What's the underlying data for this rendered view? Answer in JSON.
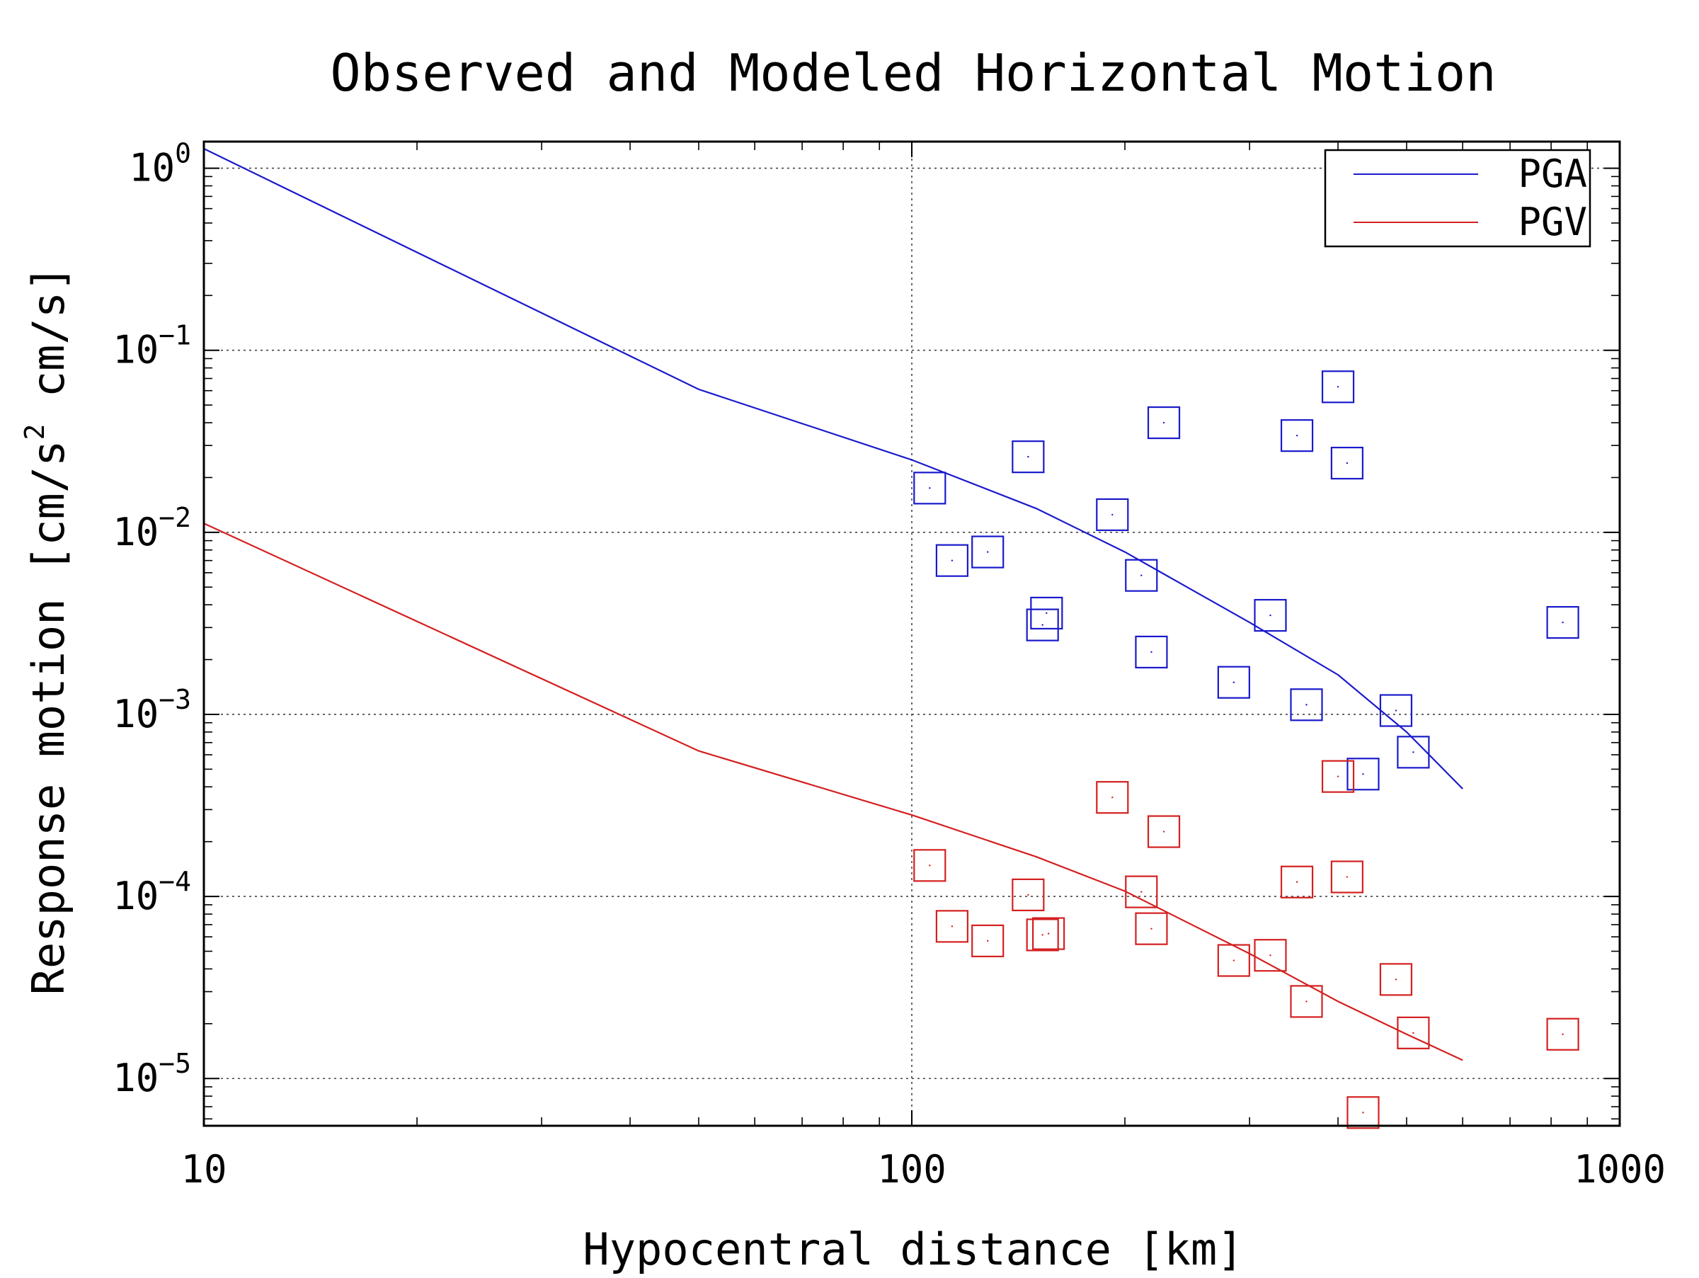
{
  "chart_data": {
    "type": "line",
    "title": "Observed and Modeled Horizontal Motion",
    "xlabel": "Hypocentral distance [km]",
    "ylabel": "Response motion  [cm/s",
    "ylabel_exponent": "2",
    "ylabel_suffix": "  cm/s]",
    "xscale": "log",
    "yscale": "log",
    "xlim": [
      10,
      1000
    ],
    "ylim": [
      5.5e-06,
      1.4
    ],
    "grid": true,
    "legend_position": "top-right",
    "x_ticks": [
      {
        "value": 10,
        "label": "10"
      },
      {
        "value": 100,
        "label": "100"
      },
      {
        "value": 1000,
        "label": "1000"
      }
    ],
    "y_ticks": [
      {
        "value": 1,
        "base": "10",
        "exp": "0"
      },
      {
        "value": 0.1,
        "base": "10",
        "exp": "−1"
      },
      {
        "value": 0.01,
        "base": "10",
        "exp": "−2"
      },
      {
        "value": 0.001,
        "base": "10",
        "exp": "−3"
      },
      {
        "value": 0.0001,
        "base": "10",
        "exp": "−4"
      },
      {
        "value": 1e-05,
        "base": "10",
        "exp": "−5"
      }
    ],
    "series": [
      {
        "name": "PGA",
        "color": "#1a1acc",
        "line": [
          [
            10,
            1.28
          ],
          [
            50,
            0.061
          ],
          [
            100,
            0.025
          ],
          [
            150,
            0.0135
          ],
          [
            200,
            0.0078
          ],
          [
            300,
            0.0032
          ],
          [
            400,
            0.00165
          ],
          [
            500,
            0.0008
          ],
          [
            600,
            0.00039
          ]
        ],
        "points": [
          [
            106,
            0.0175
          ],
          [
            114,
            0.007
          ],
          [
            128,
            0.0078
          ],
          [
            146,
            0.026
          ],
          [
            153,
            0.0031
          ],
          [
            155,
            0.0036
          ],
          [
            192,
            0.0125
          ],
          [
            211,
            0.0058
          ],
          [
            218,
            0.0022
          ],
          [
            227,
            0.04
          ],
          [
            285,
            0.0015
          ],
          [
            321,
            0.0035
          ],
          [
            350,
            0.034
          ],
          [
            361,
            0.00113
          ],
          [
            400,
            0.063
          ],
          [
            412,
            0.024
          ],
          [
            434,
            0.00047
          ],
          [
            483,
            0.00105
          ],
          [
            511,
            0.00062
          ],
          [
            831,
            0.0032
          ]
        ]
      },
      {
        "name": "PGV",
        "color": "#d42020",
        "line": [
          [
            10,
            0.0112
          ],
          [
            50,
            0.00063
          ],
          [
            100,
            0.00028
          ],
          [
            150,
            0.000165
          ],
          [
            200,
            0.000107
          ],
          [
            300,
            4.85e-05
          ],
          [
            400,
            2.65e-05
          ],
          [
            500,
            1.75e-05
          ],
          [
            600,
            1.26e-05
          ]
        ],
        "points": [
          [
            106,
            0.000148
          ],
          [
            114,
            6.85e-05
          ],
          [
            128,
            5.7e-05
          ],
          [
            146,
            0.000102
          ],
          [
            153,
            6.15e-05
          ],
          [
            156,
            6.25e-05
          ],
          [
            192,
            0.00035
          ],
          [
            211,
            0.000106
          ],
          [
            218,
            6.65e-05
          ],
          [
            227,
            0.000227
          ],
          [
            285,
            4.45e-05
          ],
          [
            321,
            4.75e-05
          ],
          [
            350,
            0.00012
          ],
          [
            361,
            2.65e-05
          ],
          [
            400,
            0.000456
          ],
          [
            412,
            0.000128
          ],
          [
            434,
            6.5e-06
          ],
          [
            483,
            3.5e-05
          ],
          [
            511,
            1.78e-05
          ],
          [
            831,
            1.75e-05
          ]
        ]
      }
    ]
  }
}
